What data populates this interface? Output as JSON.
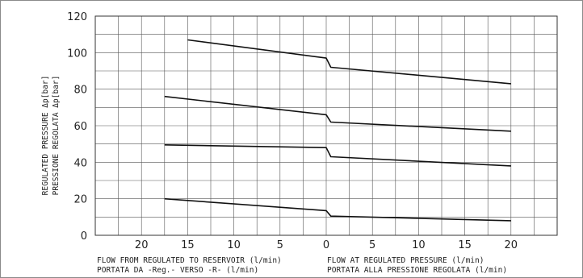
{
  "chart_data": {
    "type": "line",
    "title": "",
    "ylabel": [
      "REGULATED PRESSURE Δp[bar]",
      "PRESSIONE REGOLATA Δp[bar]"
    ],
    "xlabel_left": [
      "FLOW FROM REGULATED TO RESERVOIR (l/min)",
      "PORTATA DA -Reg.- VERSO -R- (l/min)"
    ],
    "xlabel_right": [
      "FLOW AT REGULATED PRESSURE (l/min)",
      "PORTATA ALLA PRESSIONE REGOLATA (l/min)"
    ],
    "ylim": [
      0,
      120
    ],
    "yticks": [
      "0",
      "20",
      "40",
      "60",
      "80",
      "100",
      "120"
    ],
    "xlim": [
      -25,
      25
    ],
    "xticks": [
      {
        "value": -20,
        "label": "20"
      },
      {
        "value": -15,
        "label": "15"
      },
      {
        "value": -10,
        "label": "10"
      },
      {
        "value": -5,
        "label": "5"
      },
      {
        "value": 0,
        "label": "0"
      },
      {
        "value": 5,
        "label": "5"
      },
      {
        "value": 10,
        "label": "10"
      },
      {
        "value": 15,
        "label": "15"
      },
      {
        "value": 20,
        "label": "20"
      }
    ],
    "grid": true,
    "legend": "none",
    "series": [
      {
        "points": [
          [
            -15,
            107
          ],
          [
            0,
            97
          ],
          [
            0.5,
            92
          ],
          [
            20,
            83
          ]
        ]
      },
      {
        "points": [
          [
            -17.5,
            76
          ],
          [
            0,
            66
          ],
          [
            0.5,
            62
          ],
          [
            20,
            57
          ]
        ]
      },
      {
        "points": [
          [
            -17.5,
            49.5
          ],
          [
            0,
            48
          ],
          [
            0.5,
            43
          ],
          [
            20,
            38
          ]
        ]
      },
      {
        "points": [
          [
            -17.5,
            20
          ],
          [
            0,
            13.5
          ],
          [
            0.5,
            10.5
          ],
          [
            20,
            8
          ]
        ]
      }
    ]
  }
}
